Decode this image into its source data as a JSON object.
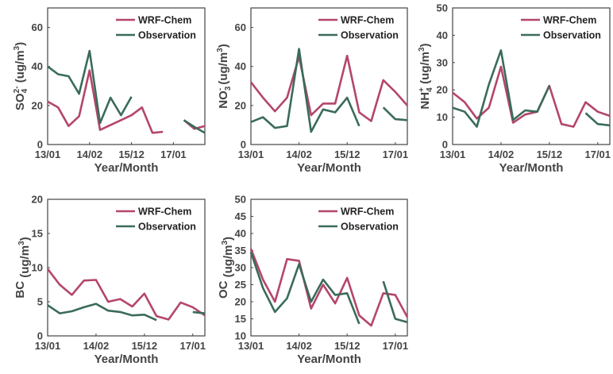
{
  "figure": {
    "colors": {
      "model": "#b4466a",
      "obs": "#3a6b5c",
      "axis": "#444444"
    },
    "xlabel": "Year/Month",
    "xticks": [
      "13/01",
      "14/02",
      "15/12",
      "17/01"
    ]
  },
  "chart_data": [
    {
      "type": "line",
      "panel": "so4",
      "ylabel": {
        "main": "SO",
        "sub": "4",
        "sup": "2-",
        "unit": "(ug/m",
        "unit_sup": "3",
        "close": ")"
      },
      "ylim": [
        0,
        70
      ],
      "yticks": [
        0,
        20,
        40,
        60
      ],
      "xlabel": "Year/Month",
      "xticks": [
        "13/01",
        "14/02",
        "15/12",
        "17/01"
      ],
      "legend": "top-right",
      "series": [
        {
          "name": "WRF-Chem",
          "values": [
            22,
            19,
            9.5,
            14.5,
            38,
            7.5,
            10,
            12.5,
            15,
            19,
            6,
            6.5,
            null,
            12.5,
            8,
            9.5
          ]
        },
        {
          "name": "Observation",
          "values": [
            40,
            36,
            35,
            26,
            48,
            11,
            24,
            15,
            24.5,
            null,
            null,
            null,
            null,
            12.5,
            9,
            6
          ]
        }
      ]
    },
    {
      "type": "line",
      "panel": "no3",
      "ylabel": {
        "main": "NO",
        "sub": "3",
        "sup": "-",
        "unit": "(ug/m",
        "unit_sup": "3",
        "close": ")"
      },
      "ylim": [
        0,
        70
      ],
      "yticks": [
        0,
        20,
        40,
        60
      ],
      "xlabel": "Year/Month",
      "xticks": [
        "13/01",
        "14/02",
        "15/12",
        "17/01"
      ],
      "legend": "top-right",
      "series": [
        {
          "name": "WRF-Chem",
          "values": [
            32,
            24,
            17,
            24,
            45,
            15,
            21,
            21,
            45.5,
            16.5,
            12,
            33,
            27,
            20
          ]
        },
        {
          "name": "Observation",
          "values": [
            11.5,
            14,
            8.5,
            9.5,
            49,
            6.5,
            18,
            16.5,
            24,
            9.5,
            null,
            19,
            13,
            12.5
          ]
        }
      ]
    },
    {
      "type": "line",
      "panel": "nh4",
      "ylabel": {
        "main": "NH",
        "sub": "4",
        "sup": "+",
        "unit": "(ug/m",
        "unit_sup": "3",
        "close": ")"
      },
      "ylim": [
        0,
        50
      ],
      "yticks": [
        0,
        10,
        20,
        30,
        40,
        50
      ],
      "xlabel": "Year/Month",
      "xticks": [
        "13/01",
        "14/02",
        "15/12",
        "17/01"
      ],
      "legend": "top-right",
      "series": [
        {
          "name": "WRF-Chem",
          "values": [
            19,
            15.5,
            9.5,
            13.5,
            28.5,
            8,
            11,
            12,
            21.5,
            7.5,
            6.5,
            15.5,
            12,
            10.5
          ]
        },
        {
          "name": "Observation",
          "values": [
            13.5,
            12,
            6.5,
            22,
            34.5,
            9,
            12.5,
            12,
            21.5,
            null,
            null,
            11.5,
            7.5,
            7
          ]
        }
      ]
    },
    {
      "type": "line",
      "panel": "bc",
      "ylabel": {
        "main": "BC",
        "sub": "",
        "sup": "",
        "unit": "(ug/m",
        "unit_sup": "3",
        "close": ")"
      },
      "ylim": [
        0,
        20
      ],
      "yticks": [
        0,
        5,
        10,
        15,
        20
      ],
      "xlabel": "Year/Month",
      "xticks": [
        "13/01",
        "14/02",
        "15/12",
        "17/01"
      ],
      "legend": "top-right",
      "series": [
        {
          "name": "WRF-Chem",
          "values": [
            9.8,
            7.5,
            6,
            8.1,
            8.2,
            5,
            5.4,
            4.3,
            6.2,
            2.9,
            2.4,
            4.9,
            4.2,
            3
          ]
        },
        {
          "name": "Observation",
          "values": [
            4.5,
            3.3,
            3.6,
            4.2,
            4.7,
            3.7,
            3.5,
            3,
            3.1,
            2.3,
            null,
            null,
            3.5,
            3.3
          ]
        }
      ]
    },
    {
      "type": "line",
      "panel": "oc",
      "ylabel": {
        "main": "OC",
        "sub": "",
        "sup": "",
        "unit": "(ug/m",
        "unit_sup": "3",
        "close": ")"
      },
      "ylim": [
        10,
        50
      ],
      "yticks": [
        10,
        15,
        20,
        25,
        30,
        35,
        40,
        45,
        50
      ],
      "xlabel": "Year/Month",
      "xticks": [
        "13/01",
        "14/02",
        "15/12",
        "17/01"
      ],
      "legend": "top-right",
      "series": [
        {
          "name": "WRF-Chem",
          "values": [
            35.5,
            26.5,
            20,
            32.5,
            32,
            18,
            25,
            19.5,
            27,
            16,
            13,
            22.5,
            22,
            15.5
          ]
        },
        {
          "name": "Observation",
          "values": [
            34.5,
            24,
            17,
            21,
            31,
            20,
            26.5,
            22,
            22.5,
            13.5,
            null,
            26,
            15,
            14
          ]
        }
      ]
    }
  ]
}
